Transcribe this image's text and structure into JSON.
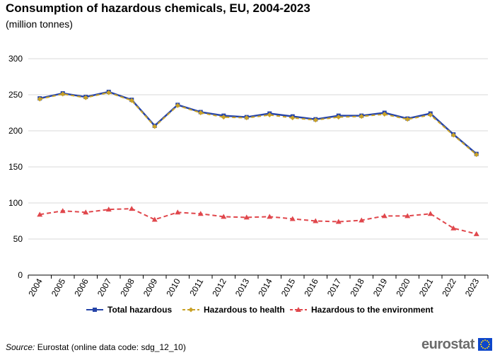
{
  "header": {
    "title": "Consumption of hazardous chemicals, EU, 2004-2023",
    "subtitle": "(million tonnes)"
  },
  "footer": {
    "source_label": "Source:",
    "source_text": "Eurostat (online data code: sdg_12_10)",
    "logo_text": "eurostat"
  },
  "colors": {
    "total": "#2644a8",
    "health": "#c9a227",
    "environment": "#e0474c",
    "grid": "#d9d9d9",
    "axis": "#000000"
  },
  "chart_data": {
    "type": "line",
    "title": "Consumption of hazardous chemicals, EU, 2004-2023",
    "ylabel": "million tonnes",
    "xlabel": "",
    "ylim": [
      0,
      300
    ],
    "yticks": [
      0,
      50,
      100,
      150,
      200,
      250,
      300
    ],
    "grid": true,
    "legend_position": "bottom",
    "categories": [
      "2004",
      "2005",
      "2006",
      "2007",
      "2008",
      "2009",
      "2010",
      "2011",
      "2012",
      "2013",
      "2014",
      "2015",
      "2016",
      "2017",
      "2018",
      "2019",
      "2020",
      "2021",
      "2022",
      "2023"
    ],
    "series": [
      {
        "name": "Total hazardous",
        "key": "total",
        "style": "solid",
        "marker": "square",
        "values": [
          245,
          252,
          247,
          254,
          243,
          207,
          236,
          226,
          221,
          219,
          224,
          220,
          216,
          221,
          221,
          225,
          217,
          224,
          195,
          168
        ]
      },
      {
        "name": "Hazardous to health",
        "key": "health",
        "style": "dashed",
        "marker": "diamond",
        "values": [
          244,
          251,
          246,
          253,
          242,
          206,
          235,
          225,
          219,
          218,
          222,
          218,
          215,
          219,
          220,
          223,
          216,
          222,
          194,
          167
        ]
      },
      {
        "name": "Hazardous to the environment",
        "key": "environment",
        "style": "dashed",
        "marker": "triangle",
        "values": [
          84,
          89,
          87,
          91,
          92,
          77,
          87,
          85,
          81,
          80,
          81,
          78,
          75,
          74,
          76,
          82,
          82,
          85,
          65,
          57
        ]
      }
    ]
  }
}
